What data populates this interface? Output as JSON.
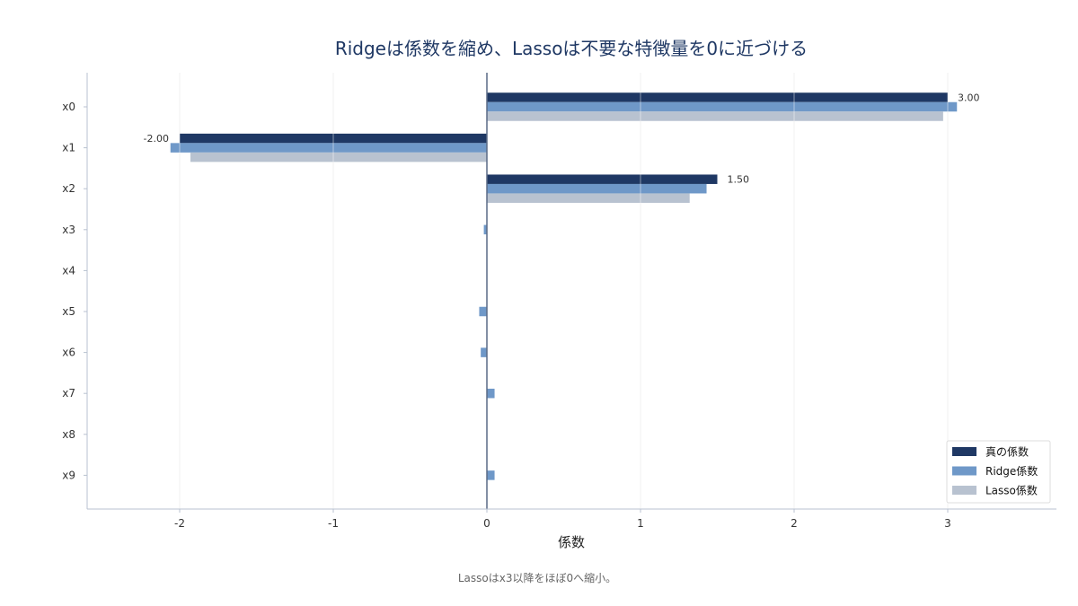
{
  "chart_data": {
    "type": "bar",
    "orientation": "horizontal",
    "title": "Ridgeは係数を縮め、Lassoは不要な特徴量を0に近づける",
    "xlabel": "係数",
    "ylabel": "",
    "caption": "Lassoはx3以降をほぼ0へ縮小。",
    "categories": [
      "x0",
      "x1",
      "x2",
      "x3",
      "x4",
      "x5",
      "x6",
      "x7",
      "x8",
      "x9"
    ],
    "xlim": [
      -2.6,
      3.7
    ],
    "xticks": [
      -2,
      -1,
      0,
      1,
      2,
      3
    ],
    "grid": "x",
    "legend_position": "bottom-right",
    "series": [
      {
        "name": "真の係数",
        "color": "#1f3864",
        "values": [
          3.0,
          -2.0,
          1.5,
          0,
          0,
          0,
          0,
          0,
          0,
          0
        ]
      },
      {
        "name": "Ridge係数",
        "color": "#6f98c8",
        "values": [
          3.06,
          -2.06,
          1.43,
          -0.02,
          0.0,
          -0.05,
          -0.04,
          0.05,
          0.0,
          0.05
        ]
      },
      {
        "name": "Lasso係数",
        "color": "#b8c2d0",
        "values": [
          2.97,
          -1.93,
          1.32,
          0,
          0,
          0,
          0,
          0,
          0,
          0
        ]
      }
    ],
    "data_labels": [
      {
        "category": "x0",
        "text": "3.00"
      },
      {
        "category": "x1",
        "text": "-2.00"
      },
      {
        "category": "x2",
        "text": "1.50"
      }
    ]
  }
}
